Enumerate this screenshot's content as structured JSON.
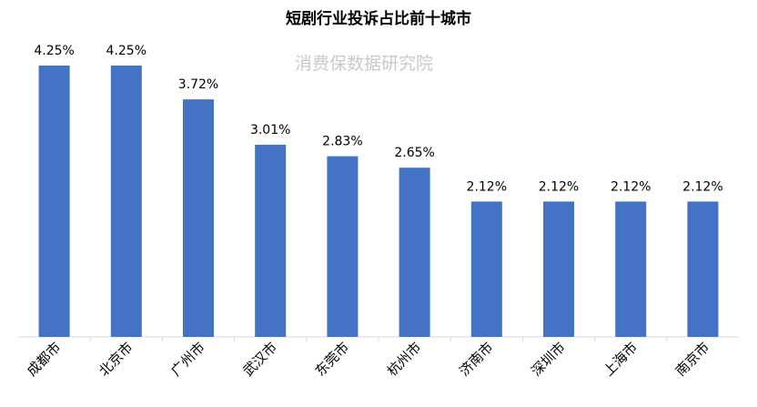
{
  "chart_data": {
    "type": "bar",
    "title": "短剧行业投诉占比前十城市",
    "watermark": "消费保数据研究院",
    "categories": [
      "成都市",
      "北京市",
      "广州市",
      "武汉市",
      "东莞市",
      "杭州市",
      "济南市",
      "深圳市",
      "上海市",
      "南京市"
    ],
    "values": [
      4.25,
      4.25,
      3.72,
      3.01,
      2.83,
      2.65,
      2.12,
      2.12,
      2.12,
      2.12
    ],
    "value_labels": [
      "4.25%",
      "4.25%",
      "3.72%",
      "3.01%",
      "2.83%",
      "2.65%",
      "2.12%",
      "2.12%",
      "2.12%",
      "2.12%"
    ],
    "xlabel": "",
    "ylabel": "",
    "ylim": [
      0,
      4.25
    ],
    "grid": false,
    "legend": "none",
    "bar_color": "#4472c4",
    "axis_color": "#d9d9d9"
  }
}
